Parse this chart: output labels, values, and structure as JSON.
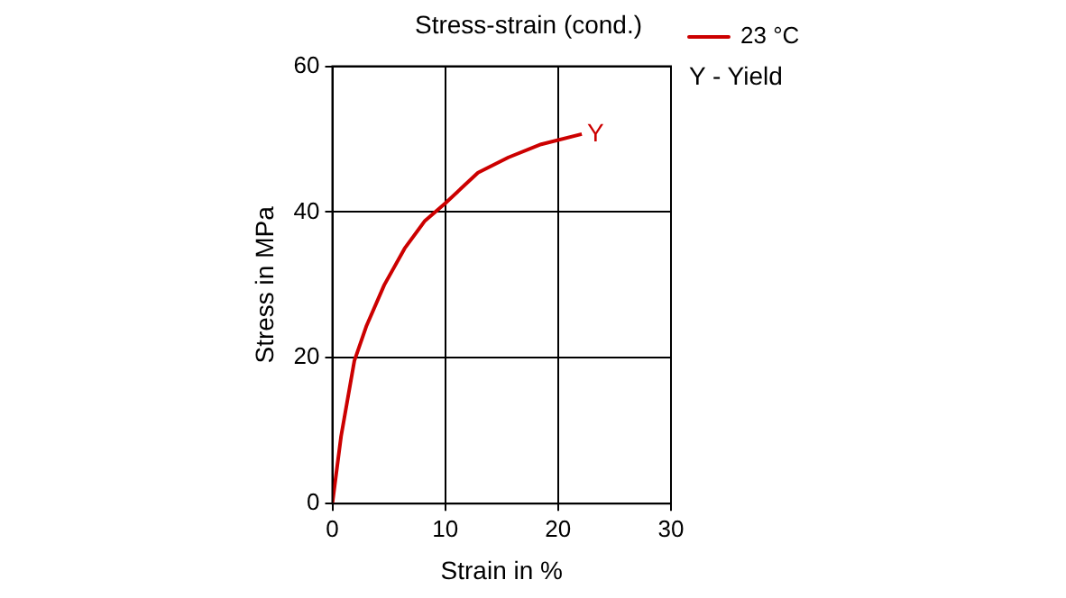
{
  "chart_data": {
    "type": "line",
    "title": "Stress-strain (cond.)",
    "xlabel": "Strain in %",
    "ylabel": "Stress in MPa",
    "x": [
      0,
      0.77,
      1.95,
      3.0,
      4.6,
      6.4,
      8.2,
      10,
      12.9,
      15.6,
      18.5,
      22.1
    ],
    "series": [
      {
        "name": "23 °C",
        "color": "#cc0000",
        "values": [
          0,
          9.2,
          19.6,
          24.3,
          30,
          35,
          38.8,
          41.2,
          45.4,
          47.5,
          49.3,
          50.7
        ]
      }
    ],
    "xlim": [
      0,
      30
    ],
    "xticks": [
      0,
      10,
      20,
      30
    ],
    "ylim": [
      0,
      60
    ],
    "yticks": [
      0,
      20,
      40,
      60
    ],
    "grid": true,
    "legend": "top right",
    "marker": "none",
    "line_style": "solid",
    "annotations": [
      {
        "text": "Y",
        "x": 22.1,
        "y": 50.7
      },
      "Y - Yield"
    ]
  }
}
